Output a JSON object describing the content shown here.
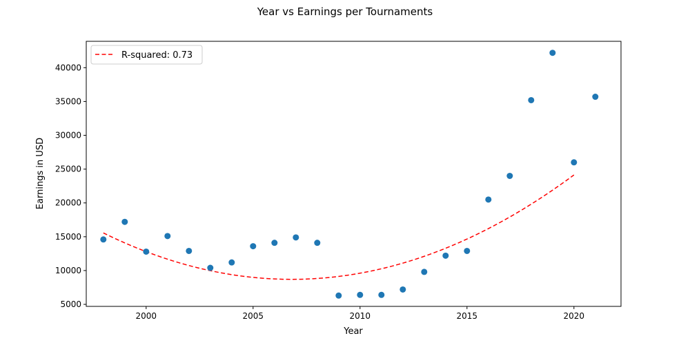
{
  "chart_data": {
    "type": "scatter",
    "title": "Year vs Earnings per Tournaments",
    "xlabel": "Year",
    "ylabel": "Earnings in USD",
    "xlim": [
      1997.2,
      2022.2
    ],
    "ylim": [
      4700,
      43900
    ],
    "xticks": [
      2000,
      2005,
      2010,
      2015,
      2020
    ],
    "yticks": [
      5000,
      10000,
      15000,
      20000,
      25000,
      30000,
      35000,
      40000
    ],
    "grid": false,
    "legend_position": "top-left",
    "series": [
      {
        "type": "scatter",
        "color": "#1f77b4",
        "points": [
          [
            1998,
            14600
          ],
          [
            1999,
            17200
          ],
          [
            2000,
            12800
          ],
          [
            2001,
            15100
          ],
          [
            2002,
            12900
          ],
          [
            2003,
            10400
          ],
          [
            2004,
            11200
          ],
          [
            2005,
            13600
          ],
          [
            2006,
            14100
          ],
          [
            2007,
            14900
          ],
          [
            2008,
            14100
          ],
          [
            2009,
            6300
          ],
          [
            2010,
            6400
          ],
          [
            2011,
            6400
          ],
          [
            2012,
            7200
          ],
          [
            2013,
            9800
          ],
          [
            2014,
            12200
          ],
          [
            2015,
            12900
          ],
          [
            2016,
            20500
          ],
          [
            2017,
            24000
          ],
          [
            2018,
            35200
          ],
          [
            2019,
            42200
          ],
          [
            2020,
            26000
          ],
          [
            2021,
            35700
          ]
        ]
      },
      {
        "type": "line",
        "name": "R-squared: 0.73",
        "color": "#ff0000",
        "dashed": true,
        "x_range": [
          1998,
          2020
        ],
        "quadratic": {
          "a": 88.6,
          "vertex_x": 2006.8,
          "vertex_y": 8700
        }
      }
    ]
  }
}
